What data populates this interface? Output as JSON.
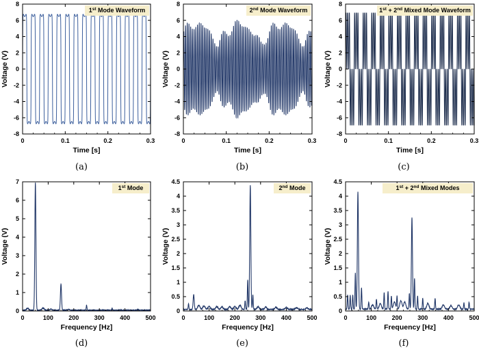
{
  "chart_data": [
    {
      "id": "a",
      "type": "line",
      "caption": "(a)",
      "title": {
        "parts": [
          {
            "t": "1"
          },
          {
            "t": "st",
            "sup": true
          },
          {
            "t": " Mode Waveform"
          }
        ]
      },
      "xlabel": "Time [s]",
      "ylabel": "Voltage (V)",
      "xlim": [
        0,
        0.3
      ],
      "ylim": [
        -8,
        8
      ],
      "xticks": [
        0,
        0.1,
        0.2,
        0.3
      ],
      "xtick_labels": [
        "0",
        "0.1",
        "0.2",
        "0.3"
      ],
      "yticks": [
        -8,
        -6,
        -4,
        -2,
        0,
        2,
        4,
        6,
        8
      ],
      "ytick_labels": [
        "-8",
        "-6",
        "-4",
        "-2",
        "0",
        "2",
        "4",
        "6",
        "8"
      ],
      "series": [
        {
          "color": "#3b5e9c",
          "signal": {
            "kind": "square",
            "freq_hz": 50,
            "amplitude": 6.6,
            "x_start": 0,
            "x_end": 0.3
          }
        }
      ]
    },
    {
      "id": "b",
      "type": "line",
      "caption": "(b)",
      "title": {
        "parts": [
          {
            "t": "2"
          },
          {
            "t": "nd",
            "sup": true
          },
          {
            "t": " Mode Waveform"
          }
        ]
      },
      "xlabel": "Time [s]",
      "ylabel": "Voltage (V)",
      "xlim": [
        0,
        0.3
      ],
      "ylim": [
        -8,
        8
      ],
      "xticks": [
        0,
        0.1,
        0.2,
        0.3
      ],
      "xtick_labels": [
        "0",
        "0.1",
        "0.2",
        "0.3"
      ],
      "yticks": [
        -8,
        -6,
        -4,
        -2,
        0,
        2,
        4,
        6,
        8
      ],
      "ytick_labels": [
        "-8",
        "-6",
        "-4",
        "-2",
        "0",
        "2",
        "4",
        "6",
        "8"
      ],
      "series": [
        {
          "color": "#1f3566",
          "signal": {
            "kind": "beat",
            "carrier_hz": 250,
            "envelope_hz": 10,
            "amplitude": 5.5,
            "x_start": 0,
            "x_end": 0.3
          }
        }
      ]
    },
    {
      "id": "c",
      "type": "line",
      "caption": "(c)",
      "title": {
        "parts": [
          {
            "t": "1"
          },
          {
            "t": "st",
            "sup": true
          },
          {
            "t": " + 2"
          },
          {
            "t": "nd",
            "sup": true
          },
          {
            "t": " Mixed Mode Waveform"
          }
        ]
      },
      "xlabel": "Time [s]",
      "ylabel": "Voltage (V)",
      "xlim": [
        0,
        0.3
      ],
      "ylim": [
        -8,
        8
      ],
      "xticks": [
        0,
        0.1,
        0.2,
        0.3
      ],
      "xtick_labels": [
        "0",
        "0.1",
        "0.2",
        "0.3"
      ],
      "yticks": [
        -8,
        -6,
        -4,
        -2,
        0,
        2,
        4,
        6,
        8
      ],
      "ytick_labels": [
        "-8",
        "-6",
        "-4",
        "-2",
        "0",
        "2",
        "4",
        "6",
        "8"
      ],
      "series": [
        {
          "color": "#1a2a4a",
          "signal": {
            "kind": "mixed",
            "freq1_hz": 50,
            "freq2_hz": 250,
            "amplitude": 6.9,
            "x_start": 0,
            "x_end": 0.3
          }
        }
      ]
    },
    {
      "id": "d",
      "type": "line",
      "caption": "(d)",
      "title": {
        "parts": [
          {
            "t": "1"
          },
          {
            "t": "st",
            "sup": true
          },
          {
            "t": " Mode"
          }
        ]
      },
      "xlabel": "Frequency [Hz]",
      "ylabel": "Voltage (V)",
      "xlim": [
        0,
        500
      ],
      "ylim": [
        0,
        7
      ],
      "xticks": [
        0,
        100,
        200,
        300,
        400,
        500
      ],
      "xtick_labels": [
        "0",
        "100",
        "200",
        "300",
        "400",
        "500"
      ],
      "yticks": [
        0,
        1,
        2,
        3,
        4,
        5,
        6,
        7
      ],
      "ytick_labels": [
        "0",
        "1",
        "2",
        "3",
        "4",
        "5",
        "6",
        "7"
      ],
      "series": [
        {
          "color": "#1f3566",
          "spectrum": {
            "baseline": 0.03,
            "peaks": [
              [
                50,
                6.9,
                3
              ],
              [
                150,
                1.42,
                3
              ],
              [
                250,
                0.27,
                2
              ],
              [
                350,
                0.1,
                2
              ],
              [
                450,
                0.05,
                2
              ]
            ],
            "bumps": [
              [
                20,
                0.1
              ],
              [
                80,
                0.12
              ],
              [
                110,
                0.06
              ],
              [
                180,
                0.04
              ]
            ]
          }
        }
      ]
    },
    {
      "id": "e",
      "type": "line",
      "caption": "(e)",
      "title": {
        "parts": [
          {
            "t": "2"
          },
          {
            "t": "nd",
            "sup": true
          },
          {
            "t": " Mode"
          }
        ]
      },
      "xlabel": "Frequency [Hz]",
      "ylabel": "Voltage (V)",
      "xlim": [
        0,
        500
      ],
      "ylim": [
        0,
        4.5
      ],
      "xticks": [
        0,
        100,
        200,
        300,
        400,
        500
      ],
      "xtick_labels": [
        "0",
        "100",
        "200",
        "300",
        "400",
        "500"
      ],
      "yticks": [
        0,
        0.5,
        1,
        1.5,
        2,
        2.5,
        3,
        3.5,
        4,
        4.5
      ],
      "ytick_labels": [
        "0",
        "0.5",
        "1",
        "1.5",
        "2",
        "2.5",
        "3",
        "3.5",
        "4",
        "4.5"
      ],
      "series": [
        {
          "color": "#1f3566",
          "spectrum": {
            "baseline": 0.04,
            "peaks": [
              [
                260,
                4.32,
                3
              ],
              [
                250,
                1.02,
                2
              ],
              [
                40,
                0.52,
                3
              ],
              [
                270,
                0.5,
                2
              ],
              [
                240,
                0.3,
                2
              ],
              [
                20,
                0.2,
                2
              ]
            ],
            "bumps": [
              [
                60,
                0.15
              ],
              [
                80,
                0.12
              ],
              [
                100,
                0.1
              ],
              [
                130,
                0.1
              ],
              [
                150,
                0.09
              ],
              [
                180,
                0.1
              ],
              [
                200,
                0.1
              ],
              [
                220,
                0.15
              ],
              [
                290,
                0.1
              ],
              [
                320,
                0.08
              ],
              [
                360,
                0.07
              ],
              [
                400,
                0.07
              ],
              [
                440,
                0.06
              ],
              [
                480,
                0.05
              ]
            ]
          }
        }
      ]
    },
    {
      "id": "f",
      "type": "line",
      "caption": "(f)",
      "title": {
        "parts": [
          {
            "t": "1"
          },
          {
            "t": "st",
            "sup": true
          },
          {
            "t": " + 2"
          },
          {
            "t": "nd",
            "sup": true
          },
          {
            "t": " Mixed Modes"
          }
        ]
      },
      "xlabel": "Frequency [Hz]",
      "ylabel": "Voltage (V)",
      "xlim": [
        0,
        500
      ],
      "ylim": [
        0,
        4.5
      ],
      "xticks": [
        0,
        100,
        200,
        300,
        400,
        500
      ],
      "xtick_labels": [
        "0",
        "100",
        "200",
        "300",
        "400",
        "500"
      ],
      "yticks": [
        0,
        0.5,
        1,
        1.5,
        2,
        2.5,
        3,
        3.5,
        4,
        4.5
      ],
      "ytick_labels": [
        "0",
        "0.5",
        "1",
        "1.5",
        "2",
        "2.5",
        "3",
        "3.5",
        "4",
        "4.5"
      ],
      "series": [
        {
          "color": "#1f3566",
          "spectrum": {
            "baseline": 0.05,
            "peaks": [
              [
                48,
                4.08,
                3
              ],
              [
                258,
                3.18,
                3
              ],
              [
                38,
                1.25,
                2
              ],
              [
                62,
                0.75,
                2
              ],
              [
                268,
                1.08,
                2
              ],
              [
                8,
                0.5,
                2
              ],
              [
                18,
                0.48,
                2
              ],
              [
                28,
                0.5,
                2
              ],
              [
                150,
                0.58,
                2
              ],
              [
                165,
                0.62,
                2
              ],
              [
                178,
                0.45,
                2
              ],
              [
                200,
                0.45,
                2
              ],
              [
                248,
                0.55,
                2
              ],
              [
                280,
                0.45,
                2
              ],
              [
                300,
                0.38,
                2
              ],
              [
                348,
                0.38,
                2
              ],
              [
                120,
                0.35,
                2
              ],
              [
                90,
                0.25,
                2
              ],
              [
                460,
                0.22,
                2
              ],
              [
                480,
                0.24,
                2
              ]
            ],
            "bumps": [
              [
                105,
                0.15
              ],
              [
                135,
                0.2
              ],
              [
                190,
                0.25
              ],
              [
                215,
                0.3
              ],
              [
                230,
                0.25
              ],
              [
                320,
                0.2
              ],
              [
                380,
                0.15
              ],
              [
                410,
                0.12
              ],
              [
                440,
                0.15
              ]
            ]
          }
        }
      ]
    }
  ]
}
